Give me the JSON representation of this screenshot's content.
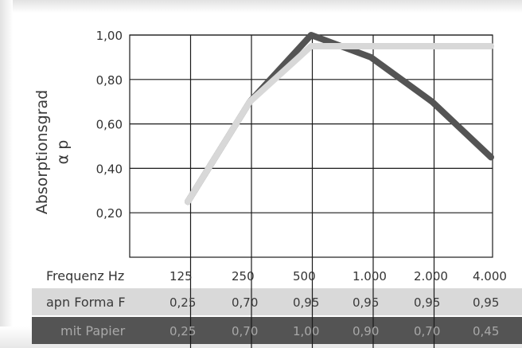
{
  "chart_data": {
    "type": "line",
    "ylabel": "Absorptionsgrad",
    "ylabel_unit": "α p",
    "xlabel": "Frequenz Hz",
    "categories": [
      "125",
      "250",
      "500",
      "1.000",
      "2.000",
      "4.000"
    ],
    "yticks": [
      "1,00",
      "0,80",
      "0,60",
      "0,40",
      "0,20"
    ],
    "ylim": [
      0,
      1
    ],
    "grid": true,
    "series": [
      {
        "name": "apn Forma F",
        "values": [
          0.25,
          0.7,
          0.95,
          0.95,
          0.95,
          0.95
        ],
        "labels": [
          "0,25",
          "0,70",
          "0,95",
          "0,95",
          "0,95",
          "0,95"
        ],
        "color": "#d8d8d8"
      },
      {
        "name": "mit Papier",
        "values": [
          0.25,
          0.7,
          1.0,
          0.9,
          0.7,
          0.45
        ],
        "labels": [
          "0,25",
          "0,70",
          "1,00",
          "0,90",
          "0,70",
          "0,45"
        ],
        "color": "#545454"
      }
    ]
  },
  "colors": {
    "row1_bg": "#d9d9d9",
    "row1_text": "#3a3a3a",
    "row2_bg": "#545454",
    "row2_text": "#a8a8a8",
    "grid": "#1a1a1a",
    "axis_text": "#333333"
  }
}
